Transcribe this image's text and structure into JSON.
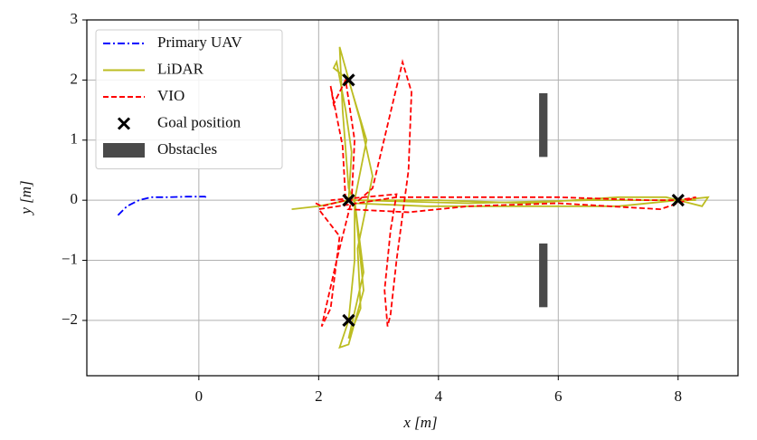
{
  "chart_data": {
    "type": "trajectory",
    "xlabel": "x [m]",
    "ylabel": "y [m]",
    "xlim": [
      -1.87,
      9.0
    ],
    "ylim": [
      -2.92,
      3
    ],
    "xticks": [
      0,
      2,
      4,
      6,
      8
    ],
    "yticks": [
      {
        "value": -2,
        "label": "−2"
      },
      {
        "value": -1,
        "label": "−1"
      },
      0,
      1,
      2,
      3
    ],
    "grid": true,
    "legend": "upper left",
    "series": [
      {
        "name": "Primary UAV",
        "kind": "line",
        "style": "dashdot",
        "color": "#0000ff",
        "x": [
          -1.35,
          -1.3,
          -1.2,
          -1.0,
          -0.8,
          -0.5,
          -0.2,
          0.1,
          0.12
        ],
        "y": [
          -0.25,
          -0.2,
          -0.1,
          0.0,
          0.05,
          0.05,
          0.06,
          0.06,
          0.05
        ]
      },
      {
        "name": "LiDAR",
        "kind": "line",
        "style": "solid",
        "color": "#bcbd22",
        "x": [
          1.55,
          2.0,
          2.5,
          2.55,
          2.45,
          2.3,
          2.25,
          2.5,
          2.8,
          2.6,
          2.6,
          2.5,
          2.35,
          2.5,
          2.75,
          2.65,
          2.6,
          4.0,
          5.5,
          7.0,
          7.8,
          8.0,
          8.4,
          8.5,
          7.0,
          5.0,
          3.8,
          2.6,
          2.5,
          2.4,
          2.35,
          2.7,
          2.9,
          2.65,
          2.7,
          2.5,
          2.75,
          2.6,
          4.5,
          6.5,
          8.0,
          8.3
        ],
        "y": [
          -0.15,
          -0.1,
          0.0,
          0.8,
          1.5,
          2.3,
          2.2,
          2.0,
          1.0,
          0.0,
          -1.0,
          -2.0,
          -2.45,
          -2.4,
          -1.5,
          -0.5,
          0.0,
          0.0,
          -0.05,
          0.05,
          0.05,
          0.0,
          -0.1,
          0.05,
          -0.1,
          -0.1,
          -0.1,
          -0.05,
          0.2,
          1.5,
          2.55,
          1.3,
          0.4,
          -0.8,
          -1.8,
          -2.3,
          -1.2,
          0.0,
          -0.05,
          0.0,
          0.0,
          0.0
        ]
      },
      {
        "name": "VIO",
        "kind": "line",
        "style": "dashed",
        "color": "#ff0000",
        "x": [
          1.95,
          2.05,
          2.45,
          2.4,
          2.2,
          2.25,
          2.45,
          2.6,
          2.55,
          2.3,
          2.05,
          2.2,
          2.35,
          2.0,
          3.3,
          4.8,
          6.0,
          7.5,
          8.0,
          8.3,
          7.7,
          6.0,
          4.5,
          3.5,
          2.5,
          2.9,
          3.4,
          3.55,
          3.5,
          3.3,
          3.2,
          3.15,
          3.1,
          3.2,
          3.3,
          2.2
        ],
        "y": [
          -0.05,
          -0.1,
          0.0,
          0.9,
          1.9,
          1.6,
          2.0,
          1.0,
          0.0,
          -1.0,
          -2.1,
          -1.8,
          -0.6,
          -0.15,
          0.05,
          0.05,
          0.05,
          0.0,
          0.0,
          0.05,
          -0.15,
          -0.05,
          -0.1,
          -0.2,
          -0.15,
          0.2,
          2.3,
          1.8,
          0.5,
          -1.0,
          -1.9,
          -2.1,
          -1.5,
          -0.5,
          0.1,
          0.0
        ]
      },
      {
        "name": "Goal position",
        "kind": "scatter",
        "marker": "x",
        "color": "#000000",
        "x": [
          2.5,
          2.5,
          2.5,
          8.0
        ],
        "y": [
          2.0,
          0.0,
          -2.0,
          0.0
        ]
      },
      {
        "name": "Obstacles",
        "kind": "rect",
        "color": "#4a4a4a",
        "rects": [
          {
            "x": [
              5.68,
              5.82
            ],
            "y": [
              0.72,
              1.78
            ]
          },
          {
            "x": [
              5.68,
              5.82
            ],
            "y": [
              -1.78,
              -0.72
            ]
          }
        ]
      }
    ]
  }
}
